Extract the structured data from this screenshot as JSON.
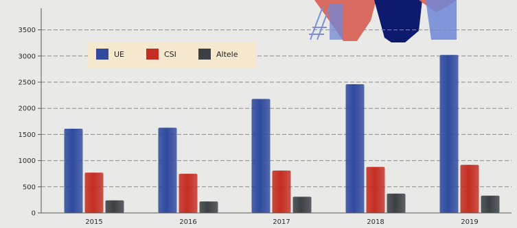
{
  "chart_data": {
    "type": "bar",
    "categories": [
      "2015",
      "2016",
      "2017",
      "2018",
      "2019"
    ],
    "series": [
      {
        "name": "UE",
        "values": [
          1610,
          1630,
          2180,
          2460,
          3020
        ],
        "color": "#2f4a9e"
      },
      {
        "name": "CSI",
        "values": [
          770,
          750,
          810,
          880,
          920
        ],
        "color": "#c42d22"
      },
      {
        "name": "Altele",
        "values": [
          240,
          220,
          310,
          370,
          330
        ],
        "color": "#3c3f43"
      }
    ],
    "yticks": [
      0,
      500,
      1000,
      1500,
      2000,
      2500,
      3000,
      3500
    ],
    "ylim": [
      0,
      3600
    ],
    "grid": true,
    "legend_position": "top-left",
    "background": "#e9e9e7",
    "legend_background": "#f6e8cf"
  }
}
